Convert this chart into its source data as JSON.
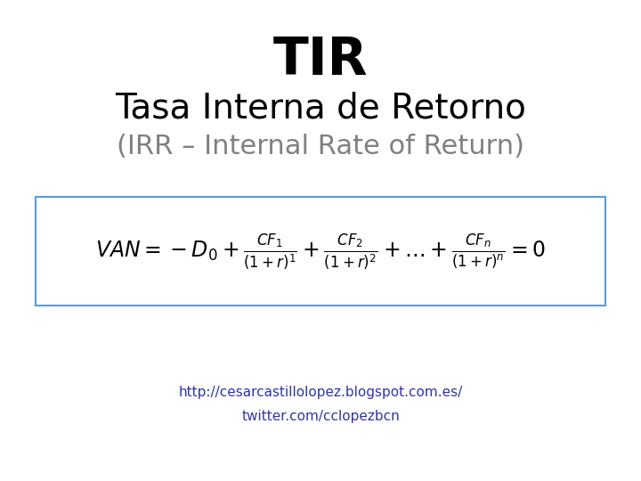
{
  "title": "TIR",
  "subtitle": "Tasa Interna de Retorno",
  "subtitle2": "(IRR – Internal Rate of Return)",
  "link": "http://cesarcastillolopez.blogspot.com.es/",
  "twitter": "twitter.com/cclopezbcn",
  "bg_color": "#ffffff",
  "title_color": "#000000",
  "subtitle_color": "#000000",
  "subtitle2_color": "#808080",
  "formula_color": "#000000",
  "box_edge_color": "#5b9bd5",
  "link_color": "#3333aa",
  "title_fontsize": 42,
  "subtitle_fontsize": 28,
  "subtitle2_fontsize": 22,
  "formula_fontsize": 17,
  "link_fontsize": 11
}
